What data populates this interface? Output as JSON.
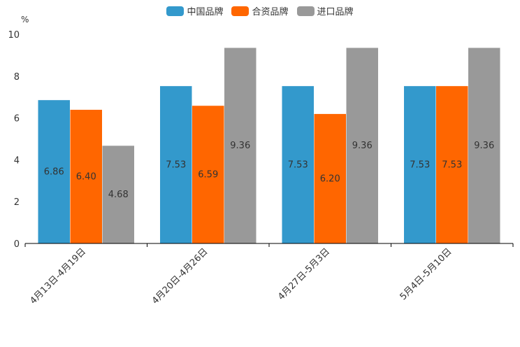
{
  "chart_data": {
    "type": "bar",
    "unit": "%",
    "categories": [
      "4月13日-4月19日",
      "4月20日-4月26日",
      "4月27日-5月3日",
      "5月4日-5月10日"
    ],
    "series": [
      {
        "name": "中国品牌",
        "color": "#3399CC",
        "values": [
          6.86,
          7.53,
          7.53,
          7.53
        ],
        "labels": [
          "6.86",
          "7.53",
          "7.53",
          "7.53"
        ]
      },
      {
        "name": "合资品牌",
        "color": "#FF6600",
        "values": [
          6.4,
          6.59,
          6.2,
          7.53
        ],
        "labels": [
          "6.40",
          "6.59",
          "6.20",
          "7.53"
        ]
      },
      {
        "name": "进口品牌",
        "color": "#999999",
        "values": [
          4.68,
          9.36,
          9.36,
          9.36
        ],
        "labels": [
          "4.68",
          "9.36",
          "9.36",
          "9.36"
        ]
      }
    ],
    "ylim": [
      0,
      10
    ],
    "yticks": [
      "0",
      "2",
      "4",
      "6",
      "8",
      "10"
    ],
    "legend_position": "top-center"
  }
}
